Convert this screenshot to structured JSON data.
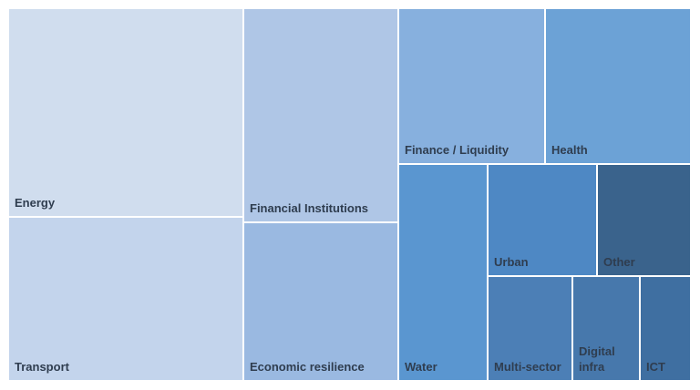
{
  "chart_data": {
    "type": "treemap",
    "items": [
      {
        "label": "Energy",
        "color": "#d0ddee"
      },
      {
        "label": "Transport",
        "color": "#c3d4ec"
      },
      {
        "label": "Financial Institutions",
        "color": "#afc6e6"
      },
      {
        "label": "Economic resilience",
        "color": "#9ab9e1"
      },
      {
        "label": "Finance / Liquidity",
        "color": "#87b0de"
      },
      {
        "label": "Health",
        "color": "#6ca2d6"
      },
      {
        "label": "Water",
        "color": "#5a96d0"
      },
      {
        "label": "Urban",
        "color": "#4e88c4"
      },
      {
        "label": "Other",
        "color": "#3a638c"
      },
      {
        "label": "Multi-sector",
        "color": "#4c7fb6"
      },
      {
        "label": "Digital\ninfra",
        "color": "#4778ac"
      },
      {
        "label": "ICT",
        "color": "#3f6fa1"
      }
    ]
  }
}
